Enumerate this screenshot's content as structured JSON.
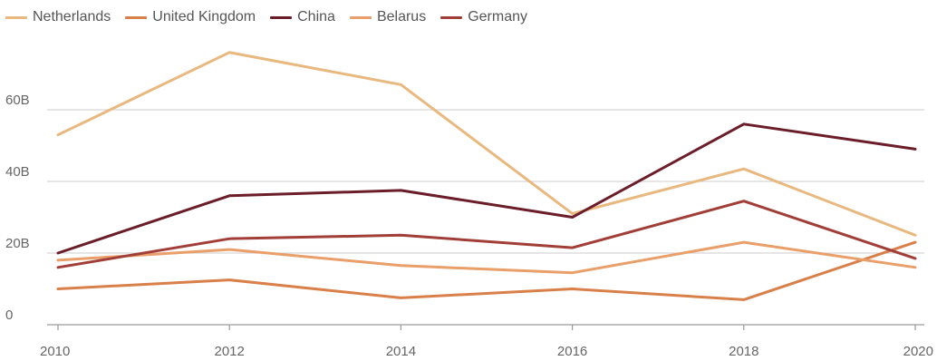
{
  "chart_data": {
    "type": "line",
    "title": "",
    "xlabel": "",
    "ylabel": "",
    "x": [
      2010,
      2012,
      2014,
      2016,
      2018,
      2020
    ],
    "x_ticks": [
      "2010",
      "2012",
      "2014",
      "2016",
      "2018",
      "2020"
    ],
    "y_ticks": [
      {
        "value": 0,
        "label": "0"
      },
      {
        "value": 20,
        "label": "20B"
      },
      {
        "value": 40,
        "label": "40B"
      },
      {
        "value": 60,
        "label": "60B"
      }
    ],
    "ylim": [
      0,
      80
    ],
    "grid": true,
    "legend_position": "top-left",
    "series": [
      {
        "name": "Netherlands",
        "color": "#e8b87f",
        "values": [
          53,
          76,
          67,
          31,
          43.5,
          25
        ]
      },
      {
        "name": "United Kingdom",
        "color": "#d9804a",
        "values": [
          10,
          12.5,
          7.5,
          10,
          7,
          23
        ]
      },
      {
        "name": "China",
        "color": "#6b1d2a",
        "values": [
          20,
          36,
          37.5,
          30,
          56,
          49
        ]
      },
      {
        "name": "Belarus",
        "color": "#e99f6a",
        "values": [
          18,
          21,
          16.5,
          14.5,
          23,
          16
        ]
      },
      {
        "name": "Germany",
        "color": "#a23e38",
        "values": [
          16,
          24,
          25,
          21.5,
          34.5,
          18.5
        ]
      }
    ]
  }
}
